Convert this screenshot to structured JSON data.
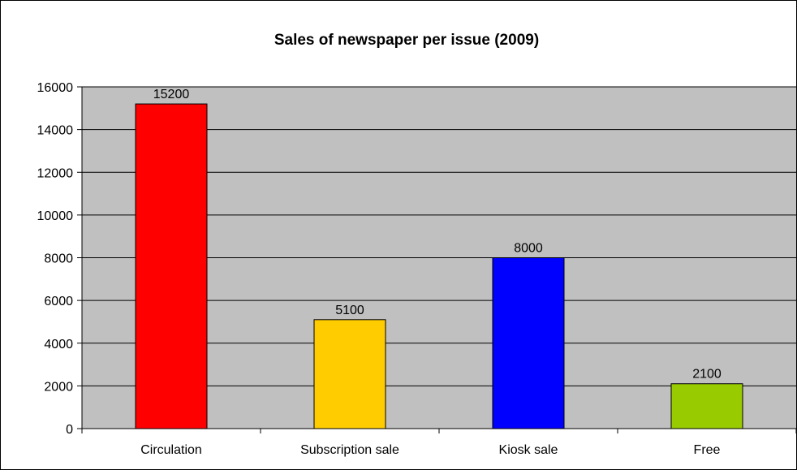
{
  "chart_data": {
    "type": "bar",
    "title": "Sales of newspaper per issue (2009)",
    "xlabel": "",
    "ylabel": "",
    "categories": [
      "Circulation",
      "Subscription sale",
      "Kiosk sale",
      "Free"
    ],
    "values": [
      15200,
      5100,
      8000,
      2100
    ],
    "data_labels": [
      "15200",
      "5100",
      "8000",
      "2100"
    ],
    "bar_colors": [
      "#ff0000",
      "#ffcc00",
      "#0000ff",
      "#99cc00"
    ],
    "ylim": [
      0,
      16000
    ],
    "y_ticks": [
      0,
      2000,
      4000,
      6000,
      8000,
      10000,
      12000,
      14000,
      16000
    ],
    "y_tick_labels": [
      "0",
      "2000",
      "4000",
      "6000",
      "8000",
      "10000",
      "12000",
      "14000",
      "16000"
    ],
    "grid": true,
    "legend": "none",
    "plot_background": "#c0c0c0"
  }
}
